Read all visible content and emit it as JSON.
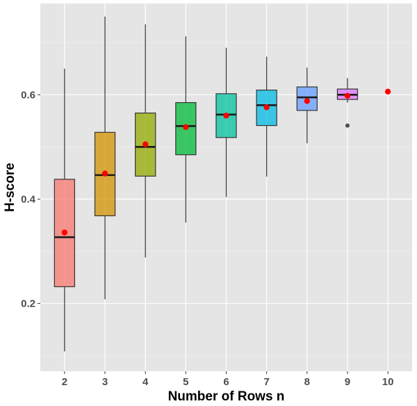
{
  "chart_data": {
    "type": "boxplot",
    "title": "",
    "xlabel": "Number of Rows n",
    "ylabel": "H-score",
    "ylim": [
      0.07,
      0.775
    ],
    "y_ticks": [
      0.2,
      0.4,
      0.6
    ],
    "y_tick_labels": [
      "0.2",
      "0.4",
      "0.6"
    ],
    "categories": [
      "2",
      "3",
      "4",
      "5",
      "6",
      "7",
      "8",
      "9",
      "10"
    ],
    "grid": true,
    "legend": "none",
    "colors": [
      "#f8766d",
      "#d39200",
      "#93aa00",
      "#00ba38",
      "#00c19f",
      "#00b9e3",
      "#619cff",
      "#db72fb",
      "#ff61c3"
    ],
    "mean_color": "#ff0000",
    "outlier_color": "#4d4d4d",
    "boxes": [
      {
        "category": "2",
        "whisker_low": 0.108,
        "q1": 0.232,
        "median": 0.327,
        "q3": 0.438,
        "whisker_high": 0.65,
        "mean": 0.336,
        "outliers": []
      },
      {
        "category": "3",
        "whisker_low": 0.208,
        "q1": 0.368,
        "median": 0.446,
        "q3": 0.528,
        "whisker_high": 0.75,
        "mean": 0.449,
        "outliers": []
      },
      {
        "category": "4",
        "whisker_low": 0.288,
        "q1": 0.444,
        "median": 0.5,
        "q3": 0.565,
        "whisker_high": 0.735,
        "mean": 0.505,
        "outliers": []
      },
      {
        "category": "5",
        "whisker_low": 0.355,
        "q1": 0.485,
        "median": 0.54,
        "q3": 0.585,
        "whisker_high": 0.712,
        "mean": 0.538,
        "outliers": []
      },
      {
        "category": "6",
        "whisker_low": 0.404,
        "q1": 0.518,
        "median": 0.562,
        "q3": 0.602,
        "whisker_high": 0.69,
        "mean": 0.56,
        "outliers": []
      },
      {
        "category": "7",
        "whisker_low": 0.443,
        "q1": 0.541,
        "median": 0.58,
        "q3": 0.609,
        "whisker_high": 0.673,
        "mean": 0.576,
        "outliers": []
      },
      {
        "category": "8",
        "whisker_low": 0.507,
        "q1": 0.57,
        "median": 0.595,
        "q3": 0.615,
        "whisker_high": 0.652,
        "mean": 0.588,
        "outliers": []
      },
      {
        "category": "9",
        "whisker_low": 0.585,
        "q1": 0.591,
        "median": 0.6,
        "q3": 0.611,
        "whisker_high": 0.632,
        "mean": 0.598,
        "outliers": [
          0.541
        ]
      },
      {
        "category": "10",
        "whisker_low": 0.606,
        "q1": 0.606,
        "median": 0.606,
        "q3": 0.606,
        "whisker_high": 0.606,
        "mean": 0.606,
        "outliers": []
      }
    ]
  }
}
